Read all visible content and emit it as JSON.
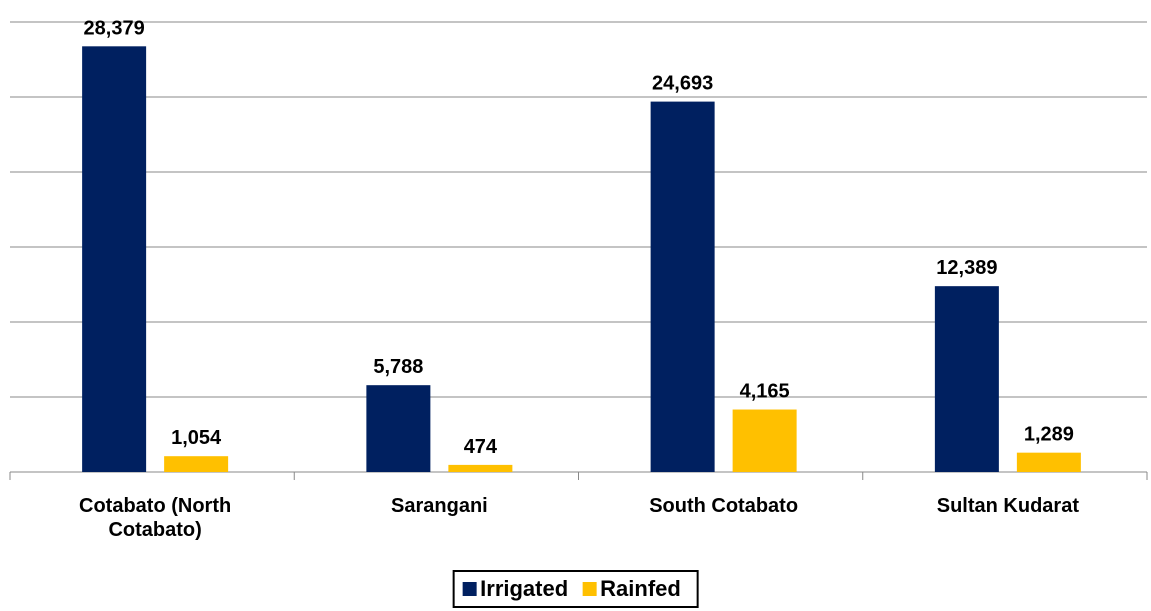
{
  "chart_data": {
    "type": "bar",
    "categories": [
      "Cotabato (North Cotabato)",
      "Sarangani",
      "South Cotabato",
      "Sultan Kudarat"
    ],
    "series": [
      {
        "name": "Irrigated",
        "color": "#002060",
        "values": [
          28379,
          5788,
          24693,
          12389
        ],
        "value_labels": [
          "28,379",
          "5,788",
          "24,693",
          "12,389"
        ]
      },
      {
        "name": "Rainfed",
        "color": "#ffc000",
        "values": [
          1054,
          474,
          4165,
          1289
        ],
        "value_labels": [
          "1,054",
          "474",
          "4,165",
          "1,289"
        ]
      }
    ],
    "ylim": [
      0,
      30000
    ],
    "yticks": [
      0,
      5000,
      10000,
      15000,
      20000,
      25000,
      30000
    ],
    "grid": true,
    "legend": "bottom"
  }
}
